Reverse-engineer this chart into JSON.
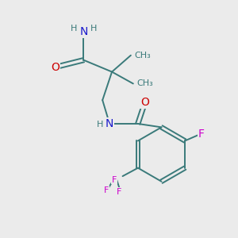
{
  "bg_color": "#ebebeb",
  "atom_colors": {
    "C": "#3a7a7a",
    "N": "#1a1acc",
    "O": "#cc0000",
    "F": "#cc00cc",
    "H": "#3a7a7a"
  },
  "bond_color": "#3a7a7a",
  "bond_width": 1.4,
  "font_size": 10,
  "small_font_size": 8,
  "figsize": [
    3.0,
    3.0
  ],
  "dpi": 100
}
